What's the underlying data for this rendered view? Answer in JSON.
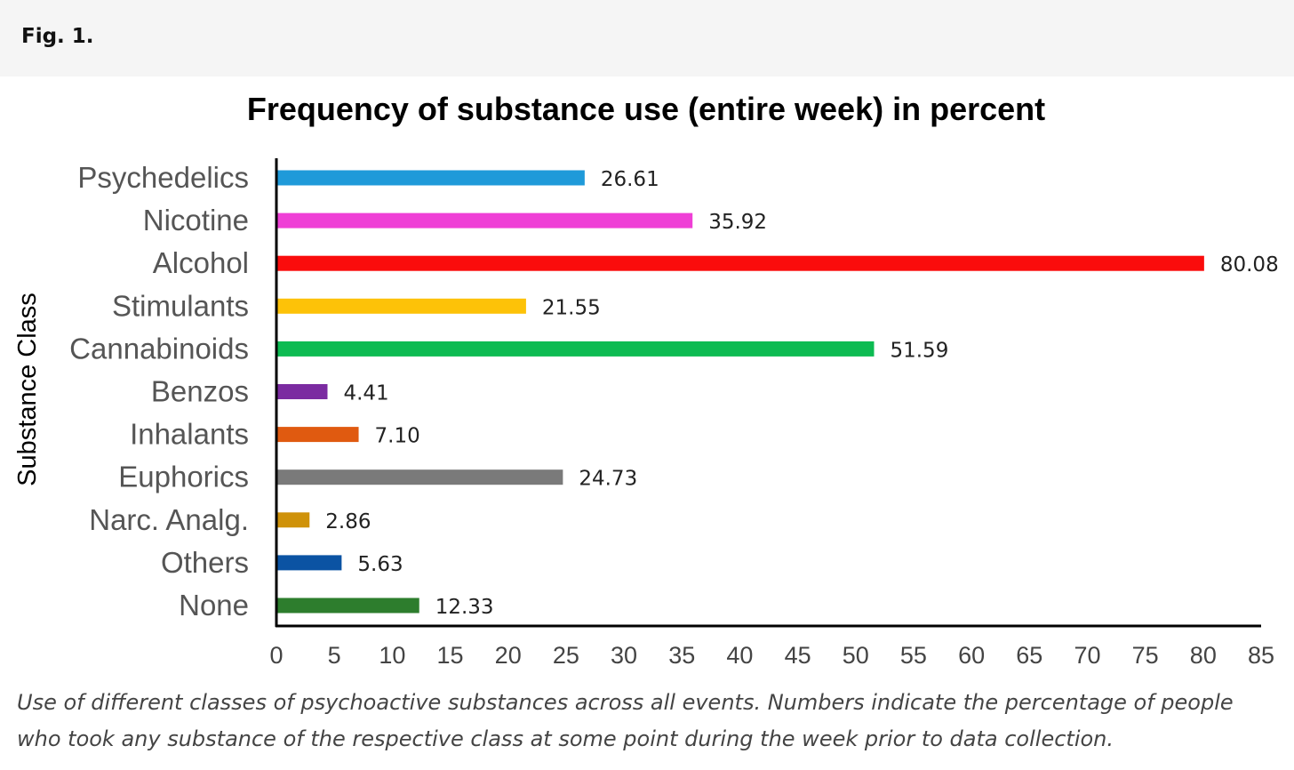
{
  "figure": {
    "label": "Fig. 1.",
    "caption": "Use of different classes of psychoactive substances across all events. Numbers indicate the percentage of people who took any substance of the respective class at some point during the week prior to data collection."
  },
  "chart_data": {
    "type": "bar",
    "orientation": "horizontal",
    "title": "Frequency of substance use (entire week) in percent",
    "xlabel": "",
    "ylabel": "Substance Class",
    "xlim": [
      0,
      85
    ],
    "xticks": [
      0,
      5,
      10,
      15,
      20,
      25,
      30,
      35,
      40,
      45,
      50,
      55,
      60,
      65,
      70,
      75,
      80,
      85
    ],
    "grid": false,
    "legend": "none",
    "categories": [
      "Psychedelics",
      "Nicotine",
      "Alcohol",
      "Stimulants",
      "Cannabinoids",
      "Benzos",
      "Inhalants",
      "Euphorics",
      "Narc. Analg.",
      "Others",
      "None"
    ],
    "values": [
      26.61,
      35.92,
      80.08,
      21.55,
      51.59,
      4.41,
      7.1,
      24.73,
      2.86,
      5.63,
      12.33
    ],
    "value_labels": [
      "26.61",
      "35.92",
      "80.08",
      "21.55",
      "51.59",
      "4.41",
      "7.10",
      "24.73",
      "2.86",
      "5.63",
      "12.33"
    ],
    "colors": [
      "#1f9ad9",
      "#ef3fd6",
      "#fa0c0c",
      "#fdc208",
      "#0dbb52",
      "#7b2ba1",
      "#e05a10",
      "#7a7a7a",
      "#cf920a",
      "#0b53a3",
      "#2d7d2d"
    ]
  }
}
